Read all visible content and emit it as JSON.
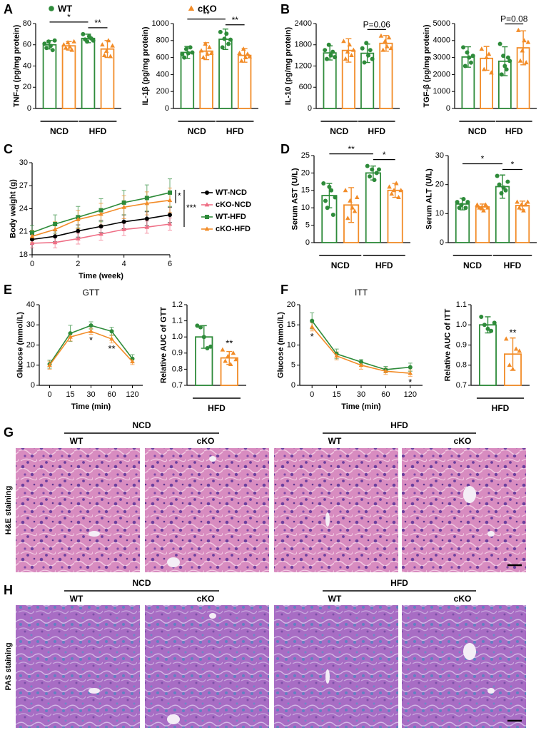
{
  "legend": [
    {
      "name": "WT",
      "color": "#2e8b3a",
      "marker": "circle"
    },
    {
      "name": "cKO",
      "color": "#f28c28",
      "marker": "triangle"
    }
  ],
  "chart_data": [
    {
      "type": "bar",
      "panel": "A",
      "ylabel": "TNF-α (pg/mg protein)",
      "categories": [
        "NCD",
        "HFD"
      ],
      "series": [
        {
          "color": "#2e8b3a",
          "marker": "circle",
          "values": [
            60,
            66
          ],
          "errors": [
            4,
            4
          ],
          "points": [
            [
              61,
              57,
              63,
              59,
              55,
              64
            ],
            [
              70,
              65,
              63,
              68,
              66,
              64
            ]
          ]
        },
        {
          "color": "#f28c28",
          "marker": "triangle",
          "values": [
            59,
            56
          ],
          "errors": [
            4,
            8
          ],
          "points": [
            [
              60,
              57,
              62,
              58,
              55,
              63
            ],
            [
              60,
              50,
              54,
              64,
              49,
              59
            ]
          ]
        }
      ],
      "ylim": [
        0,
        80
      ],
      "yticks": [
        0,
        20,
        40,
        60,
        80
      ],
      "comparisons": [
        {
          "text": "*",
          "pair": [
            0,
            2
          ]
        },
        {
          "text": "**",
          "pair": [
            2,
            3
          ]
        }
      ]
    },
    {
      "type": "bar",
      "ylabel": "IL-1β (pg/mg protein)",
      "categories": [
        "NCD",
        "HFD"
      ],
      "series": [
        {
          "color": "#2e8b3a",
          "marker": "circle",
          "values": [
            660,
            815
          ],
          "errors": [
            70,
            120
          ],
          "points": [
            [
              640,
              600,
              700,
              650,
              720,
              660
            ],
            [
              900,
              720,
              820,
              880,
              760,
              810
            ]
          ]
        },
        {
          "color": "#f28c28",
          "marker": "triangle",
          "values": [
            675,
            625
          ],
          "errors": [
            100,
            80
          ],
          "points": [
            [
              680,
              600,
              760,
              640,
              720,
              650
            ],
            [
              650,
              560,
              700,
              600,
              640,
              610
            ]
          ]
        }
      ],
      "ylim": [
        0,
        1000
      ],
      "yticks": [
        0,
        200,
        400,
        600,
        800,
        1000
      ],
      "comparisons": [
        {
          "text": "**",
          "pair": [
            0,
            2
          ]
        },
        {
          "text": "**",
          "pair": [
            2,
            3
          ]
        }
      ]
    },
    {
      "type": "bar",
      "panel": "B",
      "ylabel": "IL-10 (pg/mg protein)",
      "categories": [
        "NCD",
        "HFD"
      ],
      "series": [
        {
          "color": "#2e8b3a",
          "marker": "circle",
          "values": [
            1570,
            1560
          ],
          "errors": [
            200,
            260
          ],
          "points": [
            [
              1650,
              1400,
              1800,
              1500,
              1600,
              1450
            ],
            [
              1700,
              1300,
              1850,
              1500,
              1650,
              1400
            ]
          ]
        },
        {
          "color": "#f28c28",
          "marker": "triangle",
          "values": [
            1640,
            1840
          ],
          "errors": [
            330,
            220
          ],
          "points": [
            [
              1900,
              1400,
              1600,
              1800,
              1500,
              1650
            ],
            [
              2050,
              1650,
              1900,
              1750,
              2000,
              1700
            ]
          ]
        }
      ],
      "ylim": [
        0,
        2400
      ],
      "yticks": [
        0,
        600,
        1200,
        1800,
        2400
      ],
      "comparisons": [
        {
          "text": "P=0.06",
          "pair": [
            2,
            3
          ]
        }
      ]
    },
    {
      "type": "bar",
      "ylabel": "TGF-β (pg/mg protein)",
      "categories": [
        "NCD",
        "HFD"
      ],
      "series": [
        {
          "color": "#2e8b3a",
          "marker": "circle",
          "values": [
            3030,
            2780
          ],
          "errors": [
            600,
            850
          ],
          "points": [
            [
              3600,
              2500,
              3300,
              3000,
              2700,
              3100
            ],
            [
              3800,
              2000,
              3100,
              2500,
              2300,
              3000,
              2800
            ]
          ]
        },
        {
          "color": "#f28c28",
          "marker": "triangle",
          "values": [
            2950,
            3570
          ],
          "errors": [
            700,
            1000
          ],
          "points": [
            [
              3500,
              2300,
              3000,
              3200,
              2100
            ],
            [
              4600,
              2800,
              3400,
              4000,
              2700,
              3900
            ]
          ]
        }
      ],
      "ylim": [
        0,
        5000
      ],
      "yticks": [
        0,
        1000,
        2000,
        3000,
        4000,
        5000
      ],
      "comparisons": [
        {
          "text": "P=0.08",
          "pair": [
            2,
            3
          ]
        }
      ]
    },
    {
      "type": "line",
      "panel": "C",
      "xlabel": "Time (week)",
      "ylabel": "Body weight (g)",
      "x": [
        0,
        1,
        2,
        3,
        4,
        5,
        6
      ],
      "xlim": [
        0,
        6
      ],
      "xticks": [
        0,
        2,
        4,
        6
      ],
      "ylim": [
        18,
        30
      ],
      "yticks": [
        18,
        21,
        24,
        27,
        30
      ],
      "legend": "right",
      "series": [
        {
          "name": "WT-NCD",
          "color": "#000000",
          "marker": "circle",
          "values": [
            20.0,
            20.4,
            21.1,
            21.7,
            22.3,
            22.7,
            23.2
          ],
          "errors": [
            0.6,
            0.7,
            0.8,
            0.8,
            0.9,
            0.9,
            1.0
          ]
        },
        {
          "name": "cKO-NCD",
          "color": "#ef6f86",
          "marker": "triangle",
          "values": [
            19.5,
            19.6,
            20.1,
            20.7,
            21.3,
            21.6,
            22.0
          ],
          "errors": [
            0.6,
            0.7,
            0.7,
            0.8,
            0.8,
            0.8,
            0.8
          ]
        },
        {
          "name": "WT-HFD",
          "color": "#2e8b3a",
          "marker": "square",
          "values": [
            20.9,
            22.0,
            22.9,
            23.8,
            24.8,
            25.4,
            26.1
          ],
          "errors": [
            0.9,
            1.2,
            1.4,
            1.5,
            1.6,
            1.7,
            1.8
          ]
        },
        {
          "name": "cKO-HFD",
          "color": "#f28c28",
          "marker": "triangle",
          "values": [
            20.4,
            21.3,
            22.6,
            23.3,
            24.2,
            24.7,
            25.1
          ],
          "errors": [
            0.8,
            1.0,
            1.2,
            1.4,
            1.5,
            1.5,
            1.6
          ]
        }
      ],
      "brackets": [
        {
          "text": "*",
          "series": [
            2,
            3
          ]
        },
        {
          "text": "***",
          "series": [
            2,
            1
          ]
        }
      ]
    },
    {
      "type": "bar",
      "panel": "D",
      "ylabel": "Serum AST (U/L)",
      "categories": [
        "NCD",
        "HFD"
      ],
      "series": [
        {
          "color": "#2e8b3a",
          "marker": "circle",
          "values": [
            13.5,
            20.0
          ],
          "errors": [
            3.5,
            2.0
          ],
          "points": [
            [
              17,
              12,
              10,
              16,
              15,
              8,
              13
            ],
            [
              22,
              19,
              21,
              18,
              20,
              21
            ]
          ]
        },
        {
          "color": "#f28c28",
          "marker": "triangle",
          "values": [
            10.8,
            15.0
          ],
          "errors": [
            5.0,
            2.0
          ],
          "points": [
            [
              15,
              7,
              12,
              10,
              9,
              13
            ],
            [
              16,
              14,
              15,
              17,
              13,
              15
            ]
          ]
        }
      ],
      "ylim": [
        0,
        25
      ],
      "yticks": [
        0,
        5,
        10,
        15,
        20,
        25
      ],
      "comparisons": [
        {
          "text": "**",
          "pair": [
            0,
            2
          ]
        },
        {
          "text": "*",
          "pair": [
            2,
            3
          ]
        }
      ]
    },
    {
      "type": "bar",
      "ylabel": "Serum ALT (U/L)",
      "categories": [
        "NCD",
        "HFD"
      ],
      "series": [
        {
          "color": "#2e8b3a",
          "marker": "circle",
          "values": [
            13.3,
            19.3
          ],
          "errors": [
            2.0,
            4.0
          ],
          "points": [
            [
              14,
              12,
              13,
              15,
              12,
              14
            ],
            [
              23,
              20,
              17,
              19,
              18,
              21
            ]
          ]
        },
        {
          "color": "#f28c28",
          "marker": "triangle",
          "values": [
            12.3,
            12.8
          ],
          "errors": [
            1.0,
            1.5
          ],
          "points": [
            [
              13,
              12,
              12,
              11,
              13,
              12
            ],
            [
              14,
              12,
              13,
              11,
              13,
              14
            ]
          ]
        }
      ],
      "ylim": [
        0,
        30
      ],
      "yticks": [
        0,
        10,
        20,
        30
      ],
      "comparisons": [
        {
          "text": "*",
          "pair": [
            0,
            2
          ]
        },
        {
          "text": "*",
          "pair": [
            2,
            3
          ]
        }
      ]
    },
    {
      "type": "line",
      "panel": "E",
      "title": "GTT",
      "xlabel": "Time (min)",
      "ylabel": "Glucose (mmol/L)",
      "categories": [
        "0",
        "15",
        "30",
        "60",
        "120"
      ],
      "ylim": [
        0,
        40
      ],
      "yticks": [
        0,
        10,
        20,
        30,
        40
      ],
      "series": [
        {
          "color": "#2e8b3a",
          "marker": "circle",
          "values": [
            10.5,
            25.8,
            29.7,
            26.8,
            13.2
          ],
          "errors": [
            2.0,
            4.0,
            1.8,
            2.0,
            2.0
          ]
        },
        {
          "color": "#f28c28",
          "marker": "triangle",
          "values": [
            10.0,
            24.0,
            26.8,
            23.0,
            11.8
          ],
          "errors": [
            2.0,
            2.0,
            1.5,
            2.0,
            1.5
          ]
        }
      ],
      "annotations": [
        {
          "text": "*",
          "category": 2
        },
        {
          "text": "**",
          "category": 3
        }
      ]
    },
    {
      "type": "bar",
      "ylabel": "Relative AUC of GTT",
      "categories": [
        "HFD"
      ],
      "series": [
        {
          "color": "#2e8b3a",
          "marker": "circle",
          "values": [
            1.0
          ],
          "errors": [
            0.07
          ],
          "points": [
            [
              1.07,
              1.06,
              1.0,
              0.93,
              0.94
            ]
          ]
        },
        {
          "color": "#f28c28",
          "marker": "triangle",
          "values": [
            0.87
          ],
          "errors": [
            0.04
          ],
          "points": [
            [
              0.92,
              0.85,
              0.88,
              0.83,
              0.9,
              0.86
            ]
          ]
        }
      ],
      "ylim": [
        0.7,
        1.2
      ],
      "yticks": [
        0.7,
        0.8,
        0.9,
        {
          "value": 1,
          "label": "1.0"
        },
        1.1,
        1.2
      ],
      "annotations": [
        {
          "text": "**",
          "bar": 1
        }
      ]
    },
    {
      "type": "line",
      "panel": "F",
      "title": "ITT",
      "xlabel": "Time (min)",
      "ylabel": "Glucose (mmol/L)",
      "categories": [
        "0",
        "15",
        "30",
        "60",
        "120"
      ],
      "ylim": [
        0,
        20
      ],
      "yticks": [
        0,
        5,
        10,
        15,
        20
      ],
      "series": [
        {
          "color": "#2e8b3a",
          "marker": "circle",
          "values": [
            16.0,
            7.8,
            5.8,
            3.9,
            4.5
          ],
          "errors": [
            2.0,
            1.2,
            0.6,
            0.8,
            1.0
          ]
        },
        {
          "color": "#f28c28",
          "marker": "triangle",
          "values": [
            14.5,
            7.3,
            5.0,
            3.5,
            3.0
          ],
          "errors": [
            1.0,
            1.0,
            1.0,
            0.8,
            0.8
          ]
        }
      ],
      "annotations": [
        {
          "text": "*",
          "category": 0
        },
        {
          "text": "*",
          "category": 4
        }
      ]
    },
    {
      "type": "bar",
      "ylabel": "Relative AUC of ITT",
      "categories": [
        "HFD"
      ],
      "series": [
        {
          "color": "#2e8b3a",
          "marker": "circle",
          "values": [
            1.0
          ],
          "errors": [
            0.04
          ],
          "points": [
            [
              1.04,
              1.0,
              0.98,
              0.97,
              1.01
            ]
          ]
        },
        {
          "color": "#f28c28",
          "marker": "triangle",
          "values": [
            0.855
          ],
          "errors": [
            0.08
          ],
          "points": [
            [
              0.93,
              0.8,
              0.78,
              0.88,
              0.87
            ]
          ]
        }
      ],
      "ylim": [
        0.7,
        1.1
      ],
      "yticks": [
        0.7,
        0.8,
        0.9,
        {
          "value": 1,
          "label": "1.0"
        },
        1.1
      ],
      "annotations": [
        {
          "text": "**",
          "bar": 1
        }
      ]
    }
  ],
  "histology": [
    {
      "label": "G",
      "stain": "H&E staining",
      "groups": [
        {
          "name": "NCD",
          "columns": [
            "WT",
            "cKO"
          ]
        },
        {
          "name": "HFD",
          "columns": [
            "WT",
            "cKO"
          ]
        }
      ]
    },
    {
      "label": "H",
      "stain": "PAS staining",
      "groups": [
        {
          "name": "NCD",
          "columns": [
            "WT",
            "cKO"
          ]
        },
        {
          "name": "HFD",
          "columns": [
            "WT",
            "cKO"
          ]
        }
      ]
    }
  ]
}
